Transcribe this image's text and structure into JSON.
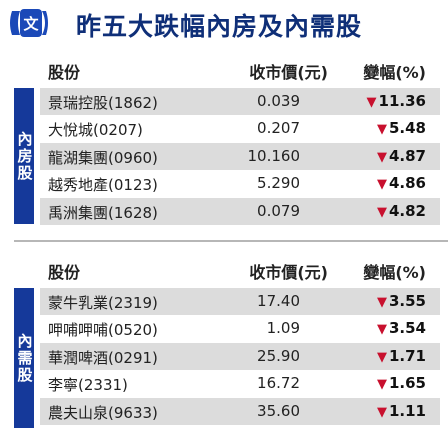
{
  "header": {
    "title": "昨五大跌幅內房及內需股"
  },
  "columns": {
    "name": "股份",
    "price": "收市價(元)",
    "change": "變幅(%)"
  },
  "sections": [
    {
      "label": "內房股",
      "rows": [
        {
          "name": "景瑞控股(1862)",
          "price": "0.039",
          "change": "11.36"
        },
        {
          "name": "大悅城(0207)",
          "price": "0.207",
          "change": "5.48"
        },
        {
          "name": "龍湖集團(0960)",
          "price": "10.160",
          "change": "4.87"
        },
        {
          "name": "越秀地產(0123)",
          "price": "5.290",
          "change": "4.86"
        },
        {
          "name": "禹洲集團(1628)",
          "price": "0.079",
          "change": "4.82"
        }
      ]
    },
    {
      "label": "內需股",
      "rows": [
        {
          "name": "蒙牛乳業(2319)",
          "price": "17.40",
          "change": "3.55"
        },
        {
          "name": "呷哺呷哺(0520)",
          "price": "1.09",
          "change": "3.54"
        },
        {
          "name": "華潤啤酒(0291)",
          "price": "25.90",
          "change": "1.71"
        },
        {
          "name": "李寧(2331)",
          "price": "16.72",
          "change": "1.65"
        },
        {
          "name": "農夫山泉(9633)",
          "price": "35.60",
          "change": "1.11"
        }
      ]
    }
  ],
  "colors": {
    "navy": "#15399a",
    "down": "#c8102e",
    "shade": "#dcdcdc"
  },
  "icons": {
    "logo": "newspaper-logo-icon",
    "down": "down-triangle-icon"
  }
}
